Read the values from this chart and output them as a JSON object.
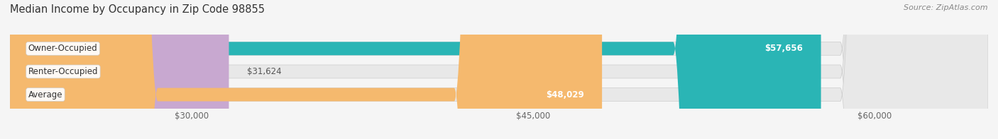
{
  "title": "Median Income by Occupancy in Zip Code 98855",
  "source": "Source: ZipAtlas.com",
  "categories": [
    "Owner-Occupied",
    "Renter-Occupied",
    "Average"
  ],
  "values": [
    57656,
    31624,
    48029
  ],
  "bar_colors": [
    "#2ab5b5",
    "#c8a8d0",
    "#f5b96e"
  ],
  "label_texts": [
    "$57,656",
    "$31,624",
    "$48,029"
  ],
  "label_inside": [
    true,
    false,
    true
  ],
  "x_ticks": [
    30000,
    45000,
    60000
  ],
  "x_tick_labels": [
    "$30,000",
    "$45,000",
    "$60,000"
  ],
  "x_min": 22000,
  "x_max": 65000,
  "background_color": "#f5f5f5",
  "bar_background_color": "#e8e8e8",
  "title_fontsize": 10.5,
  "source_fontsize": 8,
  "label_fontsize": 8.5,
  "tick_fontsize": 8.5,
  "bar_height": 0.58,
  "bar_edge_color": "#cccccc"
}
